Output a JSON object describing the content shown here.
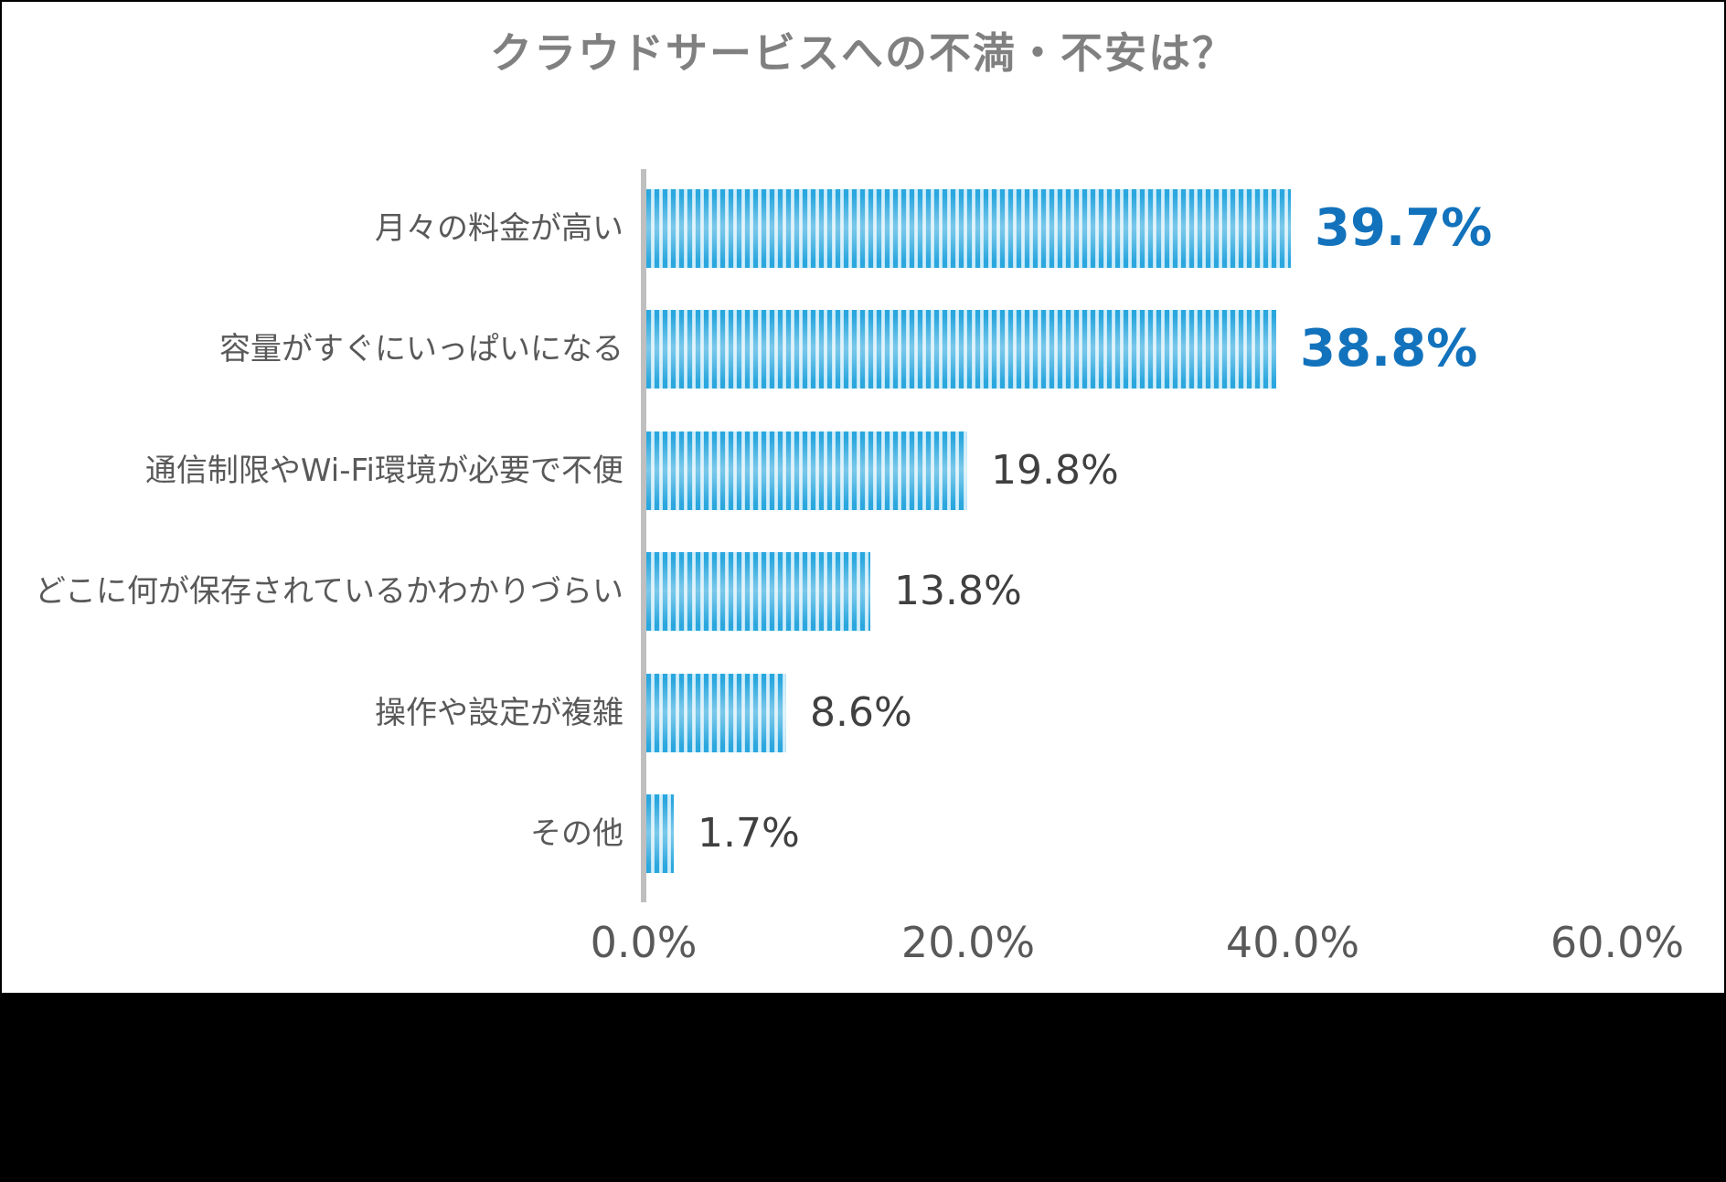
{
  "chart_data": {
    "type": "bar",
    "orientation": "horizontal",
    "title": "クラウドサービスへの不満・不安は？",
    "categories": [
      "月々の料金が高い",
      "容量がすぐにいっぱいになる",
      "通信制限やWi-Fi環境が必要で不便",
      "どこに何が保存されているかわかりづらい",
      "操作や設定が複雑",
      "その他"
    ],
    "values": [
      39.7,
      38.8,
      19.8,
      13.8,
      8.6,
      1.7
    ],
    "value_labels": [
      "39.7%",
      "38.8%",
      "19.8%",
      "13.8%",
      "8.6%",
      "1.7%"
    ],
    "emphasized": [
      true,
      true,
      false,
      false,
      false,
      false
    ],
    "x_ticks": [
      {
        "label": "0.0%",
        "value": 0
      },
      {
        "label": "20.0%",
        "value": 20
      },
      {
        "label": "40.0%",
        "value": 40
      },
      {
        "label": "60.0%",
        "value": 60
      }
    ],
    "xlim": [
      0,
      60
    ],
    "grid": false,
    "legend": null,
    "colors": {
      "title_text": "#808080",
      "category_text": "#595959",
      "value_text": "#404040",
      "emphasis_value": "#1272BC",
      "axis_line": "#BFBFBF",
      "tick_text": "#595959",
      "bar_stripe_dark": "#2AA7DE",
      "bar_stripe_mid": "#AEE0F5",
      "bar_stripe_light": "#DCF1FB",
      "background": "#FFFFFF",
      "outer_band": "#000000"
    }
  }
}
